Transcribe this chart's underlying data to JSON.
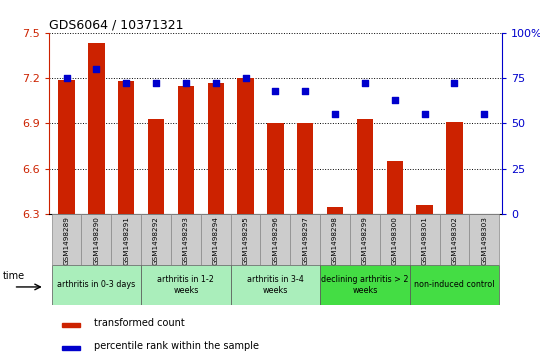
{
  "title": "GDS6064 / 10371321",
  "samples": [
    "GSM1498289",
    "GSM1498290",
    "GSM1498291",
    "GSM1498292",
    "GSM1498293",
    "GSM1498294",
    "GSM1498295",
    "GSM1498296",
    "GSM1498297",
    "GSM1498298",
    "GSM1498299",
    "GSM1498300",
    "GSM1498301",
    "GSM1498302",
    "GSM1498303"
  ],
  "bar_values": [
    7.19,
    7.43,
    7.18,
    6.93,
    7.15,
    7.17,
    7.2,
    6.9,
    6.9,
    6.35,
    6.93,
    6.65,
    6.36,
    6.91,
    6.3
  ],
  "dot_values": [
    75,
    80,
    72,
    72,
    72,
    72,
    75,
    68,
    68,
    55,
    72,
    63,
    55,
    72,
    55
  ],
  "ylim": [
    6.3,
    7.5
  ],
  "y2lim": [
    0,
    100
  ],
  "yticks": [
    6.3,
    6.6,
    6.9,
    7.2,
    7.5
  ],
  "y2ticks": [
    0,
    25,
    50,
    75,
    100
  ],
  "bar_color": "#CC2200",
  "dot_color": "#0000CC",
  "groups": [
    {
      "label": "arthritis in 0-3 days",
      "start": 0,
      "end": 2,
      "color": "#AAEEBB"
    },
    {
      "label": "arthritis in 1-2\nweeks",
      "start": 3,
      "end": 5,
      "color": "#AAEEBB"
    },
    {
      "label": "arthritis in 3-4\nweeks",
      "start": 6,
      "end": 8,
      "color": "#AAEEBB"
    },
    {
      "label": "declining arthritis > 2\nweeks",
      "start": 9,
      "end": 11,
      "color": "#44DD44"
    },
    {
      "label": "non-induced control",
      "start": 12,
      "end": 14,
      "color": "#44DD44"
    }
  ],
  "legend_red_label": "transformed count",
  "legend_blue_label": "percentile rank within the sample",
  "time_label": "time"
}
